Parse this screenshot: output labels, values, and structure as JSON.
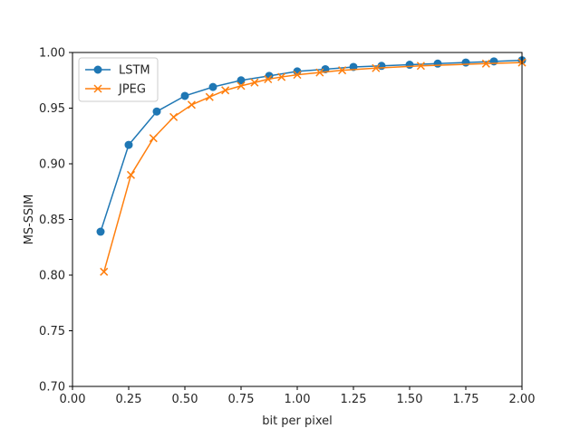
{
  "chart_data": {
    "type": "line",
    "title": "",
    "xlabel": "bit per pixel",
    "ylabel": "MS-SSIM",
    "xlim": [
      0.0,
      2.0
    ],
    "ylim": [
      0.7,
      1.0
    ],
    "xticks": [
      "0.00",
      "0.25",
      "0.50",
      "0.75",
      "1.00",
      "1.25",
      "1.50",
      "1.75",
      "2.00"
    ],
    "yticks": [
      "0.70",
      "0.75",
      "0.80",
      "0.85",
      "0.90",
      "0.95",
      "1.00"
    ],
    "grid": false,
    "legend_position": "top-left",
    "series": [
      {
        "name": "LSTM",
        "color": "#1f77b4",
        "marker": "circle",
        "x": [
          0.125,
          0.25,
          0.375,
          0.5,
          0.625,
          0.75,
          0.875,
          1.0,
          1.125,
          1.25,
          1.375,
          1.5,
          1.625,
          1.75,
          1.875,
          2.0
        ],
        "y": [
          0.839,
          0.917,
          0.947,
          0.961,
          0.969,
          0.975,
          0.979,
          0.983,
          0.985,
          0.987,
          0.988,
          0.989,
          0.99,
          0.991,
          0.992,
          0.993
        ]
      },
      {
        "name": "JPEG",
        "color": "#ff7f0e",
        "marker": "x",
        "x": [
          0.14,
          0.26,
          0.36,
          0.45,
          0.53,
          0.61,
          0.68,
          0.75,
          0.81,
          0.87,
          0.93,
          1.0,
          1.1,
          1.2,
          1.35,
          1.55,
          1.84,
          2.0
        ],
        "y": [
          0.803,
          0.89,
          0.923,
          0.942,
          0.953,
          0.96,
          0.966,
          0.97,
          0.973,
          0.976,
          0.978,
          0.98,
          0.982,
          0.984,
          0.986,
          0.988,
          0.99,
          0.991
        ]
      }
    ]
  }
}
